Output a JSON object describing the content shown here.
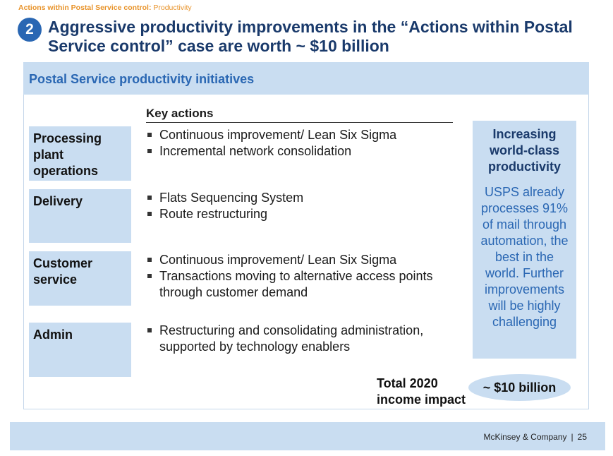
{
  "breadcrumb": {
    "bold": "Actions within Postal Service control:",
    "rest": " Productivity"
  },
  "header": {
    "number": "2",
    "title": "Aggressive productivity improvements in the “Actions within Postal Service control” case are worth ~ $10 billion"
  },
  "panel": {
    "title": "Postal Service productivity initiatives",
    "key_actions_label": "Key actions",
    "categories": [
      {
        "label": "Processing plant operations",
        "actions": [
          "Continuous improvement/ Lean Six Sigma",
          "Incremental network consolidation"
        ]
      },
      {
        "label": "Delivery",
        "actions": [
          "Flats Sequencing System",
          "Route restructuring"
        ]
      },
      {
        "label": "Customer service",
        "actions": [
          "Continuous improvement/ Lean Six Sigma",
          "Transactions moving to alternative access points through customer demand"
        ]
      },
      {
        "label": "Admin",
        "actions": [
          "Restructuring and consolidating administration, supported by technology enablers"
        ]
      }
    ],
    "side": {
      "heading": "Increasing world-class productivity",
      "text": "USPS already processes 91% of mail through automation, the best in the world. Further improvements will be highly challenging"
    },
    "total": {
      "label_line1": "Total 2020",
      "label_line2": "income impact",
      "value": "~ $10 billion"
    }
  },
  "footer": {
    "company": "McKinsey & Company",
    "separator": "|",
    "page": "25"
  },
  "colors": {
    "accent_blue": "#2a67b3",
    "light_blue": "#c9ddf1",
    "navy": "#1a3a6b",
    "orange": "#e8932a"
  }
}
